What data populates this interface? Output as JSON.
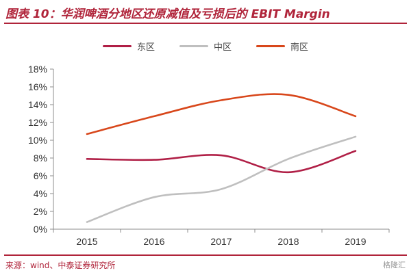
{
  "title": "图表 10：华润啤酒分地区还原减值及亏损后的 EBIT Margin",
  "source": "来源：wind、中泰证券研究所",
  "watermark": "格隆汇",
  "colors": {
    "east": "#b01f46",
    "central": "#bfbfbf",
    "south": "#d8471b",
    "accent": "#b0243a"
  },
  "chart_data": {
    "type": "line",
    "title": "华润啤酒分地区还原减值及亏损后的 EBIT Margin",
    "categories": [
      "2015",
      "2016",
      "2017",
      "2018",
      "2019"
    ],
    "yticks": [
      "0%",
      "2%",
      "4%",
      "6%",
      "8%",
      "10%",
      "12%",
      "14%",
      "16%",
      "18%"
    ],
    "ylim": [
      0,
      18
    ],
    "xlabel": "",
    "ylabel": "",
    "legend_position": "top-center",
    "series": [
      {
        "name": "东区",
        "color": "#b01f46",
        "values": [
          7.9,
          7.8,
          8.3,
          6.4,
          8.8
        ]
      },
      {
        "name": "中区",
        "color": "#bfbfbf",
        "values": [
          0.8,
          3.6,
          4.5,
          7.9,
          10.4
        ]
      },
      {
        "name": "南区",
        "color": "#d8471b",
        "values": [
          10.7,
          12.7,
          14.5,
          15.1,
          12.7
        ]
      }
    ]
  }
}
